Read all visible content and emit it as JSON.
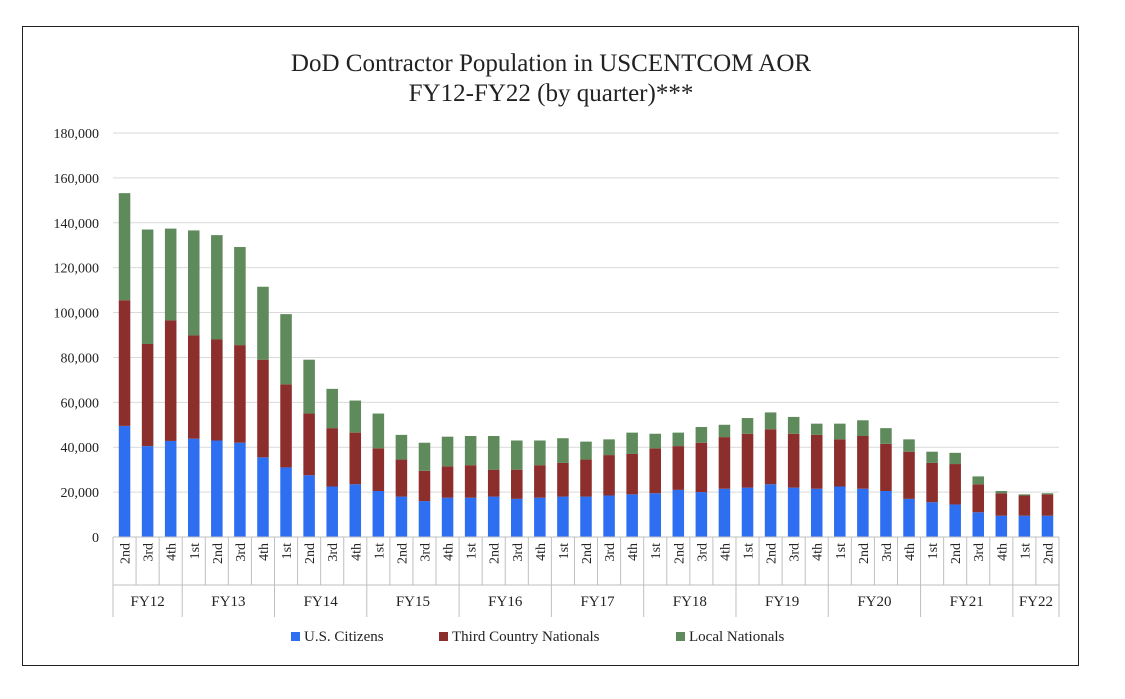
{
  "chart_data": {
    "type": "bar",
    "stacked": true,
    "title": "DoD Contractor Population in USCENTCOM AOR",
    "subtitle": "FY12-FY22 (by quarter)***",
    "xlabel": "",
    "ylabel": "",
    "ylim": [
      0,
      180000
    ],
    "yticks": [
      0,
      20000,
      40000,
      60000,
      80000,
      100000,
      120000,
      140000,
      160000,
      180000
    ],
    "ytick_labels": [
      "0",
      "20,000",
      "40,000",
      "60,000",
      "80,000",
      "100,000",
      "120,000",
      "140,000",
      "160,000",
      "180,000"
    ],
    "grid": true,
    "legend_position": "bottom",
    "groups": [
      {
        "label": "FY12",
        "quarters": [
          "2nd",
          "3rd",
          "4th"
        ]
      },
      {
        "label": "FY13",
        "quarters": [
          "1st",
          "2nd",
          "3rd",
          "4th"
        ]
      },
      {
        "label": "FY14",
        "quarters": [
          "1st",
          "2nd",
          "3rd",
          "4th"
        ]
      },
      {
        "label": "FY15",
        "quarters": [
          "1st",
          "2nd",
          "3rd",
          "4th"
        ]
      },
      {
        "label": "FY16",
        "quarters": [
          "1st",
          "2nd",
          "3rd",
          "4th"
        ]
      },
      {
        "label": "FY17",
        "quarters": [
          "1st",
          "2nd",
          "3rd",
          "4th"
        ]
      },
      {
        "label": "FY18",
        "quarters": [
          "1st",
          "2nd",
          "3rd",
          "4th"
        ]
      },
      {
        "label": "FY19",
        "quarters": [
          "1st",
          "2nd",
          "3rd",
          "4th"
        ]
      },
      {
        "label": "FY20",
        "quarters": [
          "1st",
          "2nd",
          "3rd",
          "4th"
        ]
      },
      {
        "label": "FY21",
        "quarters": [
          "1st",
          "2nd",
          "3rd",
          "4th"
        ]
      },
      {
        "label": "FY22",
        "quarters": [
          "1st",
          "2nd"
        ]
      }
    ],
    "series": [
      {
        "name": "U.S. Citizens",
        "color": "#2e6ff2",
        "values": [
          49500,
          40500,
          42800,
          43800,
          43000,
          42000,
          35500,
          31000,
          27500,
          22500,
          23500,
          20500,
          18000,
          16000,
          17500,
          17500,
          18000,
          17000,
          17500,
          18000,
          18000,
          18500,
          19000,
          19500,
          21000,
          20000,
          21500,
          22000,
          23500,
          22000,
          21500,
          22500,
          21500,
          20500,
          17000,
          15500,
          14500,
          11000,
          9500,
          9500,
          9500
        ]
      },
      {
        "name": "Third Country Nationals",
        "color": "#8c2e2b",
        "values": [
          56000,
          45500,
          53700,
          46000,
          45000,
          43500,
          43500,
          37000,
          27500,
          26000,
          23000,
          19000,
          16500,
          13500,
          14000,
          14500,
          12000,
          13000,
          14500,
          15000,
          16500,
          18000,
          18000,
          20000,
          19500,
          22000,
          23000,
          24000,
          24500,
          24000,
          24000,
          21000,
          23500,
          21000,
          21000,
          17500,
          18000,
          12500,
          10000,
          9000,
          9500
        ]
      },
      {
        "name": "Local Nationals",
        "color": "#5f8a5b",
        "values": [
          47700,
          51000,
          40900,
          46800,
          46500,
          43700,
          32500,
          31300,
          24000,
          17500,
          14300,
          15500,
          11000,
          12500,
          13200,
          13000,
          15000,
          13000,
          11000,
          11000,
          8000,
          7000,
          9500,
          6500,
          6000,
          7000,
          5500,
          7000,
          7500,
          7500,
          5000,
          7000,
          7000,
          7000,
          5500,
          5000,
          5000,
          3500,
          1000,
          500,
          500
        ]
      }
    ]
  }
}
